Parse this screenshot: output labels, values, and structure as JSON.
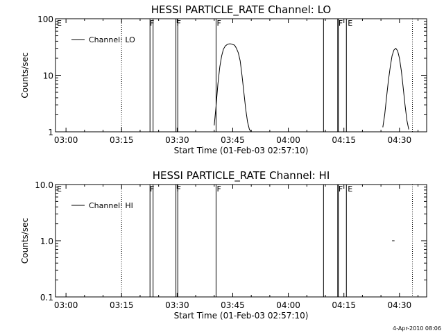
{
  "timestamp": "4-Apr-2010 08:06",
  "chart_data": [
    {
      "type": "line",
      "title": "HESSI PARTICLE_RATE Channel: LO",
      "xlabel": "Start Time (01-Feb-03 02:57:10)",
      "ylabel": "Counts/sec",
      "yscale": "log",
      "ylim": [
        1,
        100
      ],
      "xlim": [
        "02:57:10",
        "04:37:20"
      ],
      "x_ticks": [
        "03:00",
        "03:15",
        "03:30",
        "03:45",
        "04:00",
        "04:15",
        "04:30"
      ],
      "y_ticks": [
        "1",
        "10",
        "100"
      ],
      "legend": {
        "entries": [
          "Channel: LO"
        ],
        "position": "top-left"
      },
      "flags": [
        "E",
        "F",
        "F",
        "F",
        "F",
        "E"
      ],
      "series": [
        {
          "name": "Channel: LO",
          "segments": [
            {
              "x": [
                "03:40:00",
                "03:40:30",
                "03:41:00",
                "03:41:30",
                "03:42:00",
                "03:42:30",
                "03:43:00",
                "03:43:30",
                "03:44:00",
                "03:44:30",
                "03:45:00",
                "03:45:30",
                "03:46:00",
                "03:46:30",
                "03:47:00",
                "03:47:30",
                "03:48:00",
                "03:48:30",
                "03:49:00",
                "03:49:30",
                "03:50:00"
              ],
              "y": [
                1.3,
                2.8,
                7.0,
                14,
                22,
                29,
                33,
                35,
                36,
                36,
                35,
                34,
                30,
                25,
                18,
                10,
                5,
                2.5,
                1.5,
                1.1,
                1.0
              ]
            },
            {
              "x": [
                "04:25:30",
                "04:26:00",
                "04:26:30",
                "04:27:00",
                "04:27:30",
                "04:28:00",
                "04:28:30",
                "04:29:00",
                "04:29:30",
                "04:30:00",
                "04:30:30",
                "04:31:00",
                "04:31:30",
                "04:32:00",
                "04:32:30"
              ],
              "y": [
                1.2,
                2.0,
                4.0,
                8.0,
                14,
                22,
                28,
                30,
                27,
                20,
                12,
                6,
                3,
                1.6,
                1.1
              ]
            }
          ]
        }
      ]
    },
    {
      "type": "line",
      "title": "HESSI PARTICLE_RATE Channel: HI",
      "xlabel": "Start Time (01-Feb-03 02:57:10)",
      "ylabel": "Counts/sec",
      "yscale": "log",
      "ylim": [
        0.1,
        10
      ],
      "xlim": [
        "02:57:10",
        "04:37:20"
      ],
      "x_ticks": [
        "03:00",
        "03:15",
        "03:30",
        "03:45",
        "04:00",
        "04:15",
        "04:30"
      ],
      "y_ticks": [
        "0.1",
        "1.0",
        "10.0"
      ],
      "legend": {
        "entries": [
          "Channel: HI"
        ],
        "position": "top-left"
      },
      "flags": [
        "E",
        "F",
        "F",
        "F",
        "F",
        "E"
      ],
      "series": [
        {
          "name": "Channel: HI",
          "segments": [
            {
              "x": [
                "04:28:00",
                "04:28:40"
              ],
              "y": [
                1.0,
                1.0
              ]
            }
          ]
        }
      ]
    }
  ],
  "event_lines": {
    "dotted": [
      "03:15:00",
      "04:33:30"
    ],
    "solid_single": [
      "03:40:30",
      "04:09:30",
      "04:15:40"
    ],
    "solid_pairs": [
      [
        "03:22:40",
        "03:23:30"
      ],
      [
        "03:29:40",
        "03:30:10"
      ],
      [
        "04:13:20",
        "04:13:30"
      ]
    ]
  }
}
